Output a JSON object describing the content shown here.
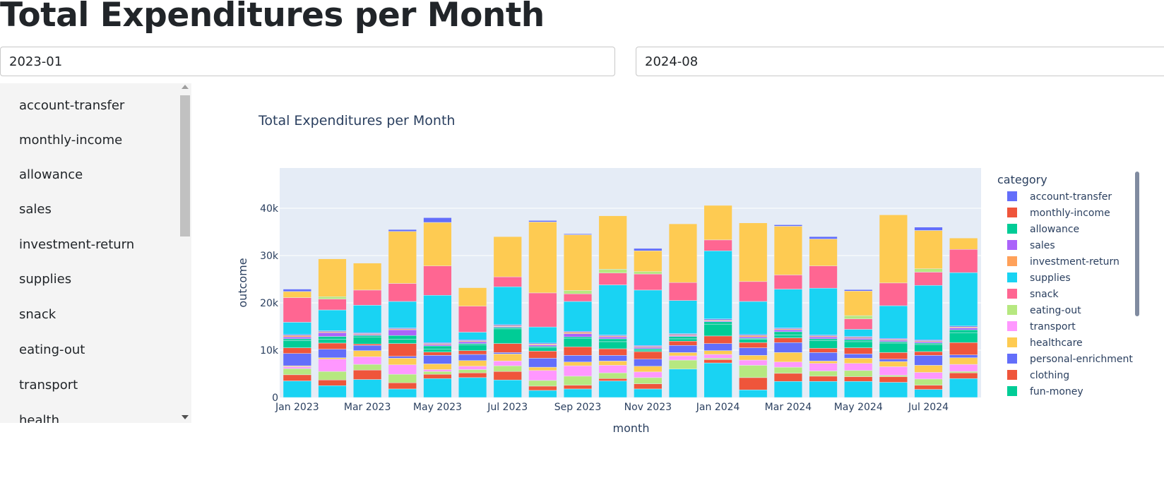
{
  "page": {
    "title": "Total Expenditures per Month"
  },
  "filters": {
    "start_value": "2023-01",
    "end_value": "2024-08"
  },
  "category_list": [
    "account-transfer",
    "monthly-income",
    "allowance",
    "sales",
    "investment-return",
    "supplies",
    "snack",
    "eating-out",
    "transport",
    "health"
  ],
  "colors": {
    "plot_bg": "#E5ECF6",
    "grid": "#ffffff",
    "text": "#2a3f5f",
    "series": {
      "account-transfer": "#636EFA",
      "monthly-income": "#EF553B",
      "allowance": "#00CC96",
      "sales": "#AB63FA",
      "investment-return": "#FFA15A",
      "supplies": "#19D3F3",
      "snack": "#FF6692",
      "eating-out": "#B6E880",
      "transport": "#FF97FF",
      "healthcare": "#FECB52",
      "personal-enrichment": "#636EFA",
      "clothing": "#EF553B",
      "fun-money": "#00CC96"
    }
  },
  "chart_data": {
    "type": "bar",
    "title": "Total Expenditures per Month",
    "xlabel": "month",
    "ylabel": "outcome",
    "legend_title": "category",
    "legend_placement": "right",
    "grid": true,
    "ylim": [
      0,
      48500
    ],
    "yticks": [
      0,
      10000,
      20000,
      30000,
      40000
    ],
    "ytick_labels": [
      "0",
      "10k",
      "20k",
      "30k",
      "40k"
    ],
    "categories": [
      "2023-01",
      "2023-02",
      "2023-03",
      "2023-04",
      "2023-05",
      "2023-06",
      "2023-07",
      "2023-08",
      "2023-09",
      "2023-10",
      "2023-11",
      "2023-12",
      "2024-01",
      "2024-02",
      "2024-03",
      "2024-04",
      "2024-05",
      "2024-06",
      "2024-07",
      "2024-08"
    ],
    "xtick_labels": [
      "Jan 2023",
      "Mar 2023",
      "May 2023",
      "Jul 2023",
      "Sep 2023",
      "Nov 2023",
      "Jan 2024",
      "Mar 2024",
      "May 2024",
      "Jul 2024"
    ],
    "legend": [
      "account-transfer",
      "monthly-income",
      "allowance",
      "sales",
      "investment-return",
      "supplies",
      "snack",
      "eating-out",
      "transport",
      "healthcare",
      "personal-enrichment",
      "clothing",
      "fun-money"
    ],
    "stack_order": [
      "supplies",
      "clothing",
      "eating-out",
      "transport",
      "healthcare",
      "personal-enrichment",
      "monthly-income",
      "fun-money",
      "allowance",
      "sales",
      "investment-return",
      "account-transfer",
      "snack"
    ],
    "series": [
      {
        "name": "supplies",
        "stack": 0,
        "values": [
          3500,
          2500,
          3800,
          1800,
          4000,
          4200,
          3700,
          1500,
          1800,
          3500,
          1800,
          6000,
          7300,
          1600,
          3400,
          3400,
          3400,
          3200,
          1700,
          4000
        ]
      },
      {
        "name": "clothing",
        "stack": 0,
        "values": [
          1300,
          1200,
          2000,
          1300,
          900,
          1000,
          1800,
          900,
          800,
          500,
          1100,
          0,
          700,
          2600,
          1700,
          1100,
          1000,
          1200,
          900,
          1200
        ]
      },
      {
        "name": "eating-out",
        "stack": 0,
        "values": [
          1300,
          1800,
          1200,
          1800,
          600,
          700,
          1200,
          1200,
          1900,
          1200,
          1300,
          1900,
          300,
          2600,
          1300,
          1100,
          1300,
          300,
          1300,
          300
        ]
      },
      {
        "name": "transport",
        "stack": 0,
        "values": [
          400,
          2600,
          1600,
          2000,
          400,
          700,
          1000,
          2100,
          2200,
          1600,
          1200,
          900,
          800,
          1100,
          1100,
          1600,
          1500,
          1800,
          1400,
          1500
        ]
      },
      {
        "name": "healthcare",
        "stack": 0,
        "values": [
          200,
          300,
          1300,
          1400,
          1200,
          1200,
          1500,
          700,
          800,
          900,
          1200,
          700,
          800,
          1000,
          2000,
          500,
          1100,
          1100,
          1500,
          1400
        ]
      },
      {
        "name": "personal-enrichment",
        "stack": 0,
        "values": [
          2600,
          1800,
          1100,
          400,
          1800,
          1300,
          300,
          1900,
          1400,
          1200,
          1500,
          1500,
          1500,
          1600,
          2100,
          1800,
          900,
          500,
          2100,
          600
        ]
      },
      {
        "name": "monthly-income",
        "stack": 0,
        "values": [
          1200,
          1300,
          300,
          2700,
          700,
          800,
          1900,
          1500,
          1800,
          1400,
          1600,
          900,
          1600,
          1100,
          1000,
          900,
          1300,
          1400,
          800,
          2600
        ]
      },
      {
        "name": "fun-money",
        "stack": 0,
        "values": [
          1500,
          800,
          1500,
          900,
          600,
          1200,
          3100,
          700,
          1800,
          1500,
          300,
          500,
          2500,
          700,
          600,
          1600,
          1300,
          2000,
          1500,
          2100
        ]
      },
      {
        "name": "allowance",
        "stack": 0,
        "values": [
          400,
          600,
          300,
          800,
          700,
          300,
          300,
          300,
          300,
          600,
          300,
          500,
          500,
          200,
          700,
          400,
          400,
          300,
          300,
          600
        ]
      },
      {
        "name": "sales",
        "stack": 0,
        "values": [
          400,
          800,
          200,
          1200,
          300,
          400,
          200,
          300,
          700,
          400,
          300,
          200,
          200,
          300,
          400,
          400,
          300,
          300,
          300,
          400
        ]
      },
      {
        "name": "investment-return",
        "stack": 0,
        "values": [
          300,
          200,
          200,
          200,
          200,
          200,
          200,
          200,
          300,
          200,
          200,
          200,
          200,
          300,
          200,
          200,
          200,
          200,
          200,
          200
        ]
      },
      {
        "name": "account-transfer",
        "stack": 0,
        "values": [
          200,
          200,
          200,
          200,
          200,
          200,
          200,
          200,
          200,
          200,
          200,
          200,
          200,
          200,
          200,
          200,
          200,
          200,
          200,
          200
        ]
      },
      {
        "name": "supplies",
        "stack": 1,
        "values": [
          2600,
          4400,
          5800,
          5600,
          10000,
          1600,
          8000,
          3400,
          6300,
          10600,
          11700,
          7000,
          14400,
          7000,
          8200,
          9900,
          1500,
          6900,
          11500,
          11300
        ]
      },
      {
        "name": "snack",
        "stack": 1,
        "values": [
          5200,
          2300,
          3200,
          3800,
          6200,
          5500,
          2100,
          7200,
          1600,
          2500,
          3400,
          3800,
          2300,
          4200,
          3000,
          4700,
          2200,
          4800,
          2800,
          4900
        ]
      },
      {
        "name": "eating-out",
        "stack": 1,
        "values": [
          0,
          500,
          0,
          0,
          0,
          0,
          0,
          0,
          700,
          800,
          500,
          0,
          0,
          0,
          0,
          0,
          700,
          0,
          700,
          0
        ]
      },
      {
        "name": "healthcare",
        "stack": 1,
        "values": [
          1300,
          8000,
          5700,
          11000,
          9200,
          3900,
          8500,
          15000,
          11800,
          11300,
          4400,
          12400,
          7300,
          12400,
          10300,
          5700,
          5200,
          14400,
          8100,
          2400
        ]
      },
      {
        "name": "personal-enrichment",
        "stack": 1,
        "values": [
          500,
          0,
          0,
          400,
          1000,
          0,
          0,
          300,
          200,
          0,
          500,
          0,
          0,
          0,
          300,
          500,
          300,
          0,
          700,
          0
        ]
      }
    ]
  }
}
